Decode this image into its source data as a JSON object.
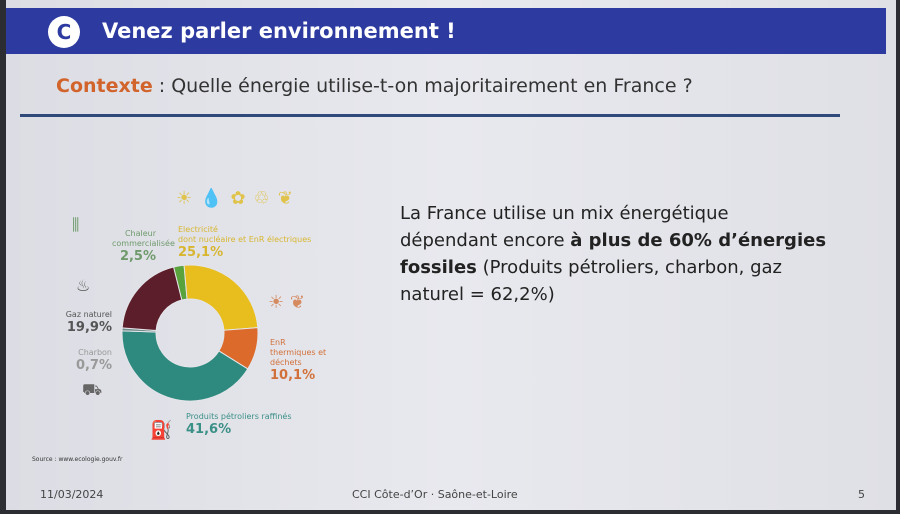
{
  "header": {
    "title": "Venez parler environnement !",
    "logo": "CCI"
  },
  "subtitle": {
    "prefix": "Contexte",
    "rest": " : Quelle énergie utilise-t-on majoritairement en France ?"
  },
  "body": {
    "part1": "La France utilise un mix énergétique dépendant encore ",
    "bold": "à plus de 60% d’énergies fossiles",
    "part2": " (Produits pétroliers, charbon, gaz naturel = 62,2%)"
  },
  "chart_data": {
    "type": "pie",
    "donut": true,
    "categories": [
      "Chaleur commercialisée",
      "Electricité",
      "EnR thermiques et déchets",
      "Produits pétroliers raffinés",
      "Charbon",
      "Gaz naturel"
    ],
    "values": [
      2.5,
      25.1,
      10.1,
      41.6,
      0.7,
      19.9
    ],
    "labels": [
      "2,5%",
      "25,1%",
      "10,1%",
      "41,6%",
      "0,7%",
      "19,9%"
    ],
    "elec_note": "dont nucléaire et EnR électriques",
    "colors": [
      "#5aa33c",
      "#e8bd1e",
      "#dc6a2a",
      "#2e8a7e",
      "#6f8a88",
      "#5c1e2a"
    ],
    "source": "Source : www.ecologie.gouv.fr"
  },
  "footer": {
    "date": "11/03/2024",
    "org": "CCI Côte-d’Or · Saône-et-Loire",
    "page": "5"
  }
}
